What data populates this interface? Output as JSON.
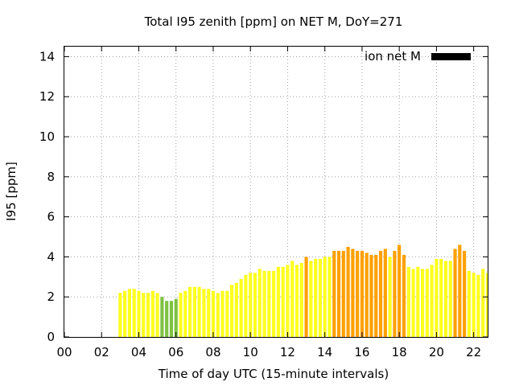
{
  "colors": {
    "background": "#ffffff",
    "level_green": "#7fc242",
    "level_yellow": "#ffff1e",
    "level_orange": "#ffa000",
    "legend_swatch": "#000000"
  },
  "chart_data": {
    "type": "bar",
    "title": "Total I95 zenith [ppm] on NET M, DoY=271",
    "xlabel": "Time of day UTC (15-minute intervals)",
    "ylabel": "I95 [ppm]",
    "xlim": [
      0,
      22.75
    ],
    "ylim": [
      0,
      14.5
    ],
    "xticks": [
      0,
      2,
      4,
      6,
      8,
      10,
      12,
      14,
      16,
      18,
      20,
      22
    ],
    "xtick_labels": [
      "00",
      "02",
      "04",
      "06",
      "08",
      "10",
      "12",
      "14",
      "16",
      "18",
      "20",
      "22"
    ],
    "yticks": [
      0,
      2,
      4,
      6,
      8,
      10,
      12,
      14
    ],
    "ytick_labels": [
      "0",
      "2",
      "4",
      "6",
      "8",
      "10",
      "12",
      "14"
    ],
    "grid": true,
    "legend": {
      "label": "ion net M",
      "placement": "top-right"
    },
    "bar_width_hours": 0.18,
    "series": [
      {
        "x": [
          3.0,
          3.25,
          3.5,
          3.75,
          4.0,
          4.25,
          4.5,
          4.75,
          5.0,
          5.25,
          5.5,
          5.75,
          6.0,
          6.25,
          6.5,
          6.75,
          7.0,
          7.25,
          7.5,
          7.75,
          8.0,
          8.25,
          8.5,
          8.75,
          9.0,
          9.25,
          9.5,
          9.75,
          10.0,
          10.25,
          10.5,
          10.75,
          11.0,
          11.25,
          11.5,
          11.75,
          12.0,
          12.25,
          12.5,
          12.75,
          13.0,
          13.25,
          13.5,
          13.75,
          14.0,
          14.25,
          14.5,
          14.75,
          15.0,
          15.25,
          15.5,
          15.75,
          16.0,
          16.25,
          16.5,
          16.75,
          17.0,
          17.25,
          17.5,
          17.75,
          18.0,
          18.25,
          18.5,
          18.75,
          19.0,
          19.25,
          19.5,
          19.75,
          20.0,
          20.25,
          20.5,
          20.75,
          21.0,
          21.25,
          21.5,
          21.75,
          22.0,
          22.25,
          22.5,
          22.75
        ],
        "values": [
          2.2,
          2.3,
          2.4,
          2.4,
          2.3,
          2.2,
          2.2,
          2.3,
          2.2,
          2.0,
          1.8,
          1.8,
          1.9,
          2.2,
          2.3,
          2.5,
          2.5,
          2.5,
          2.4,
          2.4,
          2.3,
          2.2,
          2.3,
          2.3,
          2.6,
          2.7,
          2.9,
          3.1,
          3.2,
          3.2,
          3.4,
          3.3,
          3.3,
          3.3,
          3.5,
          3.5,
          3.6,
          3.8,
          3.6,
          3.7,
          4.0,
          3.8,
          3.9,
          3.9,
          4.0,
          4.0,
          4.3,
          4.3,
          4.3,
          4.5,
          4.4,
          4.3,
          4.3,
          4.2,
          4.1,
          4.1,
          4.3,
          4.4,
          4.0,
          4.3,
          4.6,
          4.1,
          3.5,
          3.4,
          3.5,
          3.4,
          3.4,
          3.6,
          3.9,
          3.9,
          3.8,
          3.8,
          4.4,
          4.6,
          4.3,
          3.3,
          3.2,
          3.1,
          3.4,
          3.2
        ],
        "levels": [
          "yellow",
          "yellow",
          "yellow",
          "yellow",
          "yellow",
          "yellow",
          "yellow",
          "yellow",
          "yellow",
          "green",
          "green",
          "green",
          "green",
          "yellow",
          "yellow",
          "yellow",
          "yellow",
          "yellow",
          "yellow",
          "yellow",
          "yellow",
          "yellow",
          "yellow",
          "yellow",
          "yellow",
          "yellow",
          "yellow",
          "yellow",
          "yellow",
          "yellow",
          "yellow",
          "yellow",
          "yellow",
          "yellow",
          "yellow",
          "yellow",
          "yellow",
          "yellow",
          "yellow",
          "yellow",
          "orange",
          "yellow",
          "yellow",
          "yellow",
          "yellow",
          "yellow",
          "orange",
          "orange",
          "orange",
          "orange",
          "orange",
          "orange",
          "orange",
          "orange",
          "orange",
          "orange",
          "orange",
          "orange",
          "yellow",
          "orange",
          "orange",
          "orange",
          "yellow",
          "yellow",
          "yellow",
          "yellow",
          "yellow",
          "yellow",
          "yellow",
          "yellow",
          "yellow",
          "yellow",
          "orange",
          "orange",
          "orange",
          "yellow",
          "yellow",
          "yellow",
          "yellow",
          "yellow"
        ]
      }
    ]
  }
}
